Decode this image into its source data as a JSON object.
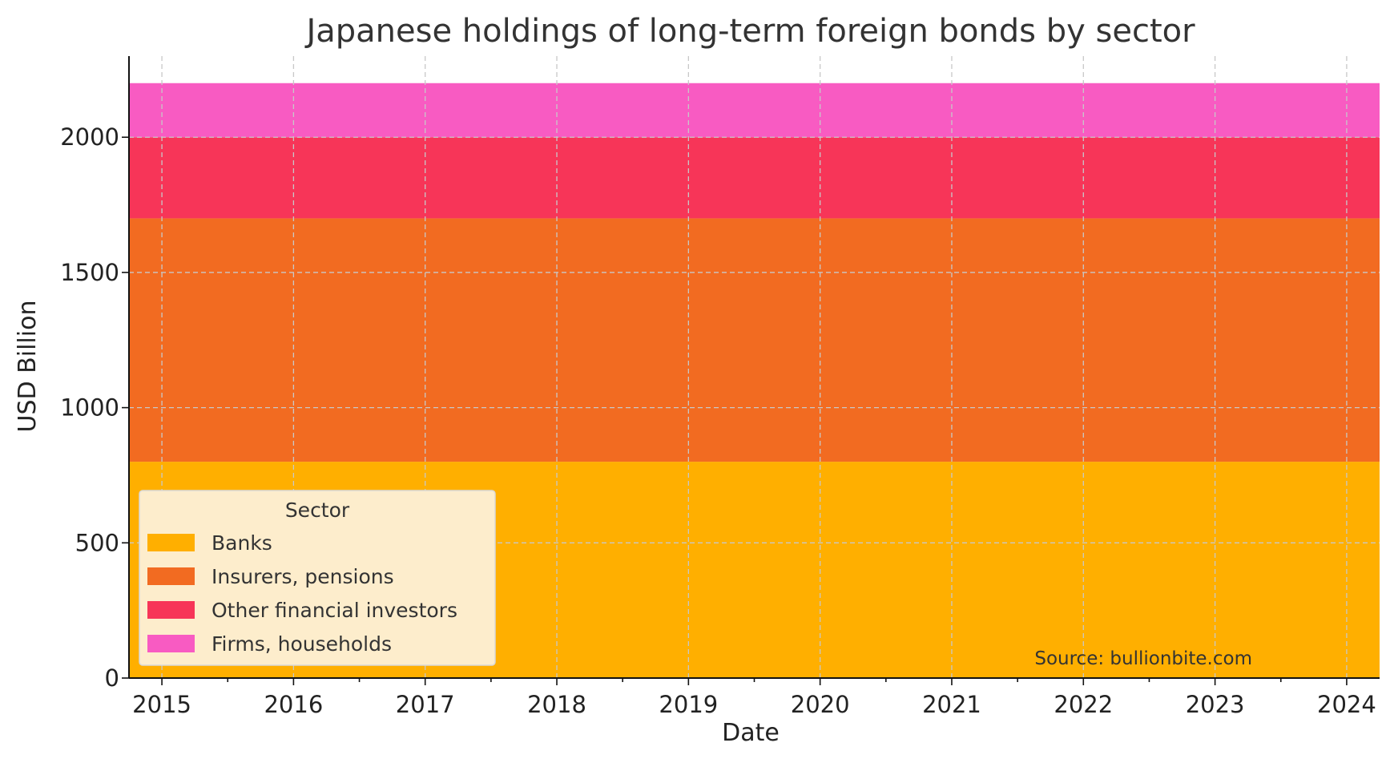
{
  "chart_data": {
    "type": "area",
    "stacked": true,
    "title": "Japanese holdings of long-term foreign bonds by sector",
    "xlabel": "Date",
    "ylabel": "USD Billion",
    "x_ticks": [
      "2015",
      "2016",
      "2017",
      "2018",
      "2019",
      "2020",
      "2021",
      "2022",
      "2023",
      "2024"
    ],
    "xlim": [
      2014.75,
      2024.25
    ],
    "y_ticks": [
      0,
      500,
      1000,
      1500,
      2000
    ],
    "ylim": [
      0,
      2300
    ],
    "grid": true,
    "legend": {
      "title": "Sector",
      "placement": "lower-left"
    },
    "series": [
      {
        "name": "Banks",
        "value": 800,
        "color": "#FFAF00"
      },
      {
        "name": "Insurers, pensions",
        "value": 900,
        "color": "#F26B21"
      },
      {
        "name": "Other financial investors",
        "value": 300,
        "color": "#F73558"
      },
      {
        "name": "Firms, households",
        "value": 200,
        "color": "#F85BC2"
      }
    ],
    "annotation": "Source: bullionbite.com"
  }
}
